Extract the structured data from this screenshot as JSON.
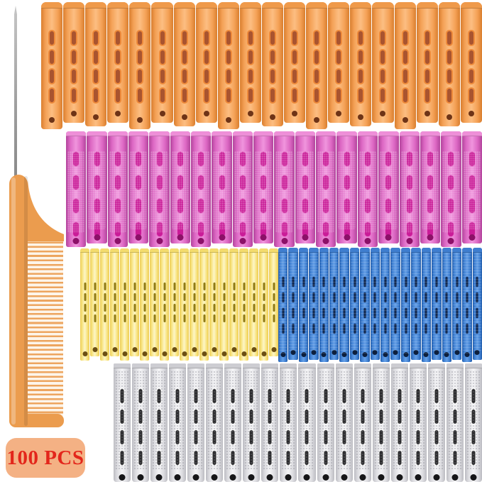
{
  "image": {
    "description": "Product photo: 100 pcs cold wave hair rollers in five colors with a rat tail comb",
    "badge": {
      "text": "100 PCS",
      "text_color": "#e3261b",
      "bg_color": "#f4b184"
    },
    "comb": {
      "type": "rat-tail-comb",
      "body_color": "#eb9c4e",
      "shade_color": "#d9873a",
      "teeth_color": "#eda55f",
      "pin_color": "#9e9e9e"
    },
    "roller_rows": [
      {
        "name": "orange",
        "count": 20,
        "slots_per_roller": 4,
        "colors": {
          "edge": "#d97e2e",
          "mid": "#f4a156",
          "center": "#fcbe82",
          "slot": "#a9542f",
          "slot_border": "#ee8a3a",
          "hole": "#6e3417",
          "cap": "#ef9a4b"
        }
      },
      {
        "name": "pink",
        "count": 20,
        "slots_per_roller": 4,
        "colors": {
          "edge": "#b2449c",
          "mid": "#dc67c3",
          "center": "#f095dd",
          "slot": "#ca1c98",
          "slot_border": "#e76ec9",
          "hole": "#8c1068",
          "cap": "#ee8fd8"
        }
      },
      {
        "name": "yellow",
        "count": 20,
        "slots_per_roller": 4,
        "colors": {
          "edge": "#eccb55",
          "mid": "#f7e27c",
          "center": "#fdf6c6",
          "slot": "#8f7a15",
          "slot_border": "#d8c050",
          "hole": "#6b4f14",
          "cap": "#f4dc6d"
        }
      },
      {
        "name": "blue",
        "count": 20,
        "slots_per_roller": 4,
        "colors": {
          "edge": "#1f5aa8",
          "mid": "#4080d2",
          "center": "#66a0e6",
          "slot": "#13294e",
          "slot_border": "#3a74c4",
          "hole": "#0d1f3c",
          "cap": "#3f7ecf"
        }
      },
      {
        "name": "gray",
        "count": 20,
        "slots_per_roller": 4,
        "colors": {
          "edge": "#bcbcc2",
          "mid": "#dcdce0",
          "center": "#f5f5f7",
          "slot": "#2c2c2e",
          "slot_border": "#f8f8f8",
          "hole": "#161618",
          "cap": "#cdcdd2"
        }
      }
    ]
  }
}
